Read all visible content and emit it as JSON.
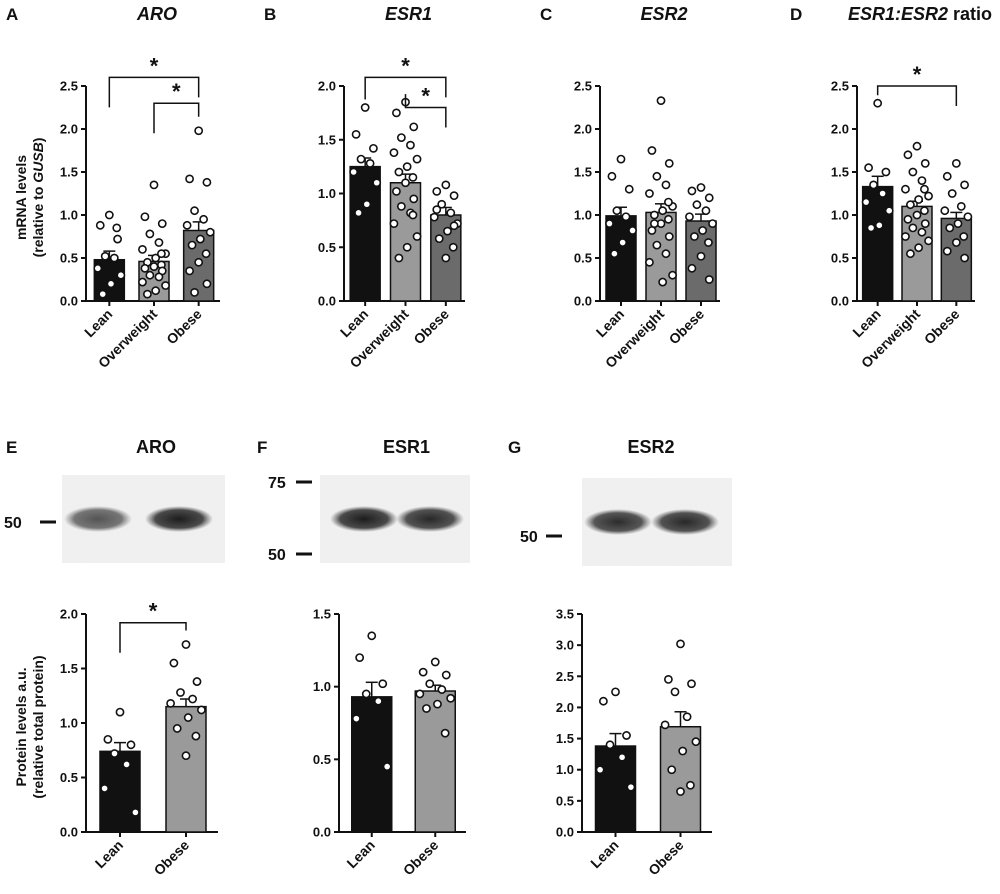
{
  "chart_data": [
    {
      "panel": "A",
      "type": "bar",
      "title": "ARO",
      "title_italic": true,
      "title_parts": [
        {
          "text": "ARO",
          "italic": true
        }
      ],
      "ylabel_lines": [
        [
          {
            "text": "mRNA levels",
            "italic": false
          }
        ],
        [
          {
            "text": "(relative to ",
            "italic": false
          },
          {
            "text": "GUSB",
            "italic": true
          },
          {
            "text": ")",
            "italic": false
          }
        ]
      ],
      "ylim": [
        0,
        2.5
      ],
      "yticks": [
        "0.0",
        "0.5",
        "1.0",
        "1.5",
        "2.0",
        "2.5"
      ],
      "categories": [
        "Lean",
        "Overweight",
        "Obese"
      ],
      "bar_colors": [
        "#111111",
        "#9a9a9a",
        "#6b6b6b"
      ],
      "values": [
        0.48,
        0.46,
        0.82
      ],
      "sem": [
        0.1,
        0.07,
        0.1
      ],
      "points": [
        [
          1.0,
          0.88,
          0.72,
          0.52,
          0.5,
          0.38,
          0.3,
          0.2,
          0.08,
          0.85
        ],
        [
          1.35,
          0.98,
          0.9,
          0.78,
          0.68,
          0.6,
          0.55,
          0.5,
          0.45,
          0.42,
          0.4,
          0.38,
          0.35,
          0.3,
          0.28,
          0.22,
          0.18,
          0.12,
          0.08,
          0.55
        ],
        [
          1.98,
          1.42,
          1.38,
          1.05,
          0.95,
          0.88,
          0.8,
          0.72,
          0.65,
          0.55,
          0.45,
          0.35,
          0.2,
          0.1
        ]
      ],
      "significance": [
        {
          "from": 0,
          "to": 2,
          "label": "*",
          "y": 2.6
        },
        {
          "from": 1,
          "to": 2,
          "label": "*",
          "y": 2.3
        }
      ]
    },
    {
      "panel": "B",
      "type": "bar",
      "title": "ESR1",
      "title_italic": true,
      "title_parts": [
        {
          "text": "ESR1",
          "italic": true
        }
      ],
      "ylim": [
        0,
        2.0
      ],
      "yticks": [
        "0.0",
        "0.5",
        "1.0",
        "1.5",
        "2.0"
      ],
      "categories": [
        "Lean",
        "Overweight",
        "Obese"
      ],
      "bar_colors": [
        "#111111",
        "#9a9a9a",
        "#6b6b6b"
      ],
      "values": [
        1.25,
        1.1,
        0.8
      ],
      "sem": [
        0.08,
        0.08,
        0.07
      ],
      "points": [
        [
          1.8,
          1.55,
          1.42,
          1.32,
          1.28,
          1.2,
          1.1,
          0.9,
          0.82
        ],
        [
          1.85,
          1.75,
          1.62,
          1.52,
          1.45,
          1.38,
          1.32,
          1.25,
          1.2,
          1.15,
          1.1,
          1.02,
          0.95,
          0.88,
          0.82,
          0.72,
          0.6,
          0.5,
          0.4,
          0.8
        ],
        [
          1.08,
          1.02,
          0.98,
          0.9,
          0.82,
          0.78,
          0.72,
          0.65,
          0.58,
          0.5,
          0.4,
          0.85,
          0.7
        ]
      ],
      "significance": [
        {
          "from": 0,
          "to": 2,
          "label": "*",
          "y": 2.08
        },
        {
          "from": 1,
          "to": 2,
          "label": "*",
          "y": 1.8
        }
      ]
    },
    {
      "panel": "C",
      "type": "bar",
      "title": "ESR2",
      "title_italic": true,
      "title_parts": [
        {
          "text": "ESR2",
          "italic": true
        }
      ],
      "ylim": [
        0,
        2.5
      ],
      "yticks": [
        "0.0",
        "0.5",
        "1.0",
        "1.5",
        "2.0",
        "2.5"
      ],
      "categories": [
        "Lean",
        "Overweight",
        "Obese"
      ],
      "bar_colors": [
        "#111111",
        "#9a9a9a",
        "#6b6b6b"
      ],
      "values": [
        0.99,
        1.03,
        0.93
      ],
      "sem": [
        0.1,
        0.1,
        0.08
      ],
      "points": [
        [
          1.65,
          1.45,
          1.3,
          1.05,
          0.98,
          0.9,
          0.82,
          0.68,
          0.55
        ],
        [
          2.33,
          1.75,
          1.6,
          1.45,
          1.35,
          1.25,
          1.1,
          1.05,
          1.0,
          0.95,
          0.9,
          0.82,
          0.75,
          0.65,
          0.55,
          0.45,
          0.3,
          0.22,
          0.9,
          1.15
        ],
        [
          1.32,
          1.28,
          1.2,
          1.12,
          1.05,
          0.98,
          0.9,
          0.82,
          0.75,
          0.68,
          0.52,
          0.38,
          0.25
        ]
      ],
      "significance": []
    },
    {
      "panel": "D",
      "type": "bar",
      "title": "ESR1:ESR2 ratio",
      "title_italic": false,
      "title_parts": [
        {
          "text": "ESR1:ESR2",
          "italic": true
        },
        {
          "text": " ratio",
          "italic": false
        }
      ],
      "ylim": [
        0,
        2.5
      ],
      "yticks": [
        "0.0",
        "0.5",
        "1.0",
        "1.5",
        "2.0",
        "2.5"
      ],
      "categories": [
        "Lean",
        "Overweight",
        "Obese"
      ],
      "bar_colors": [
        "#111111",
        "#9a9a9a",
        "#6b6b6b"
      ],
      "values": [
        1.33,
        1.1,
        0.96
      ],
      "sem": [
        0.12,
        0.06,
        0.07
      ],
      "points": [
        [
          2.3,
          1.55,
          1.5,
          1.35,
          1.25,
          1.15,
          1.05,
          0.88,
          0.85
        ],
        [
          1.8,
          1.7,
          1.6,
          1.5,
          1.4,
          1.3,
          1.22,
          1.18,
          1.12,
          1.05,
          1.0,
          0.95,
          0.9,
          0.85,
          0.8,
          0.75,
          0.7,
          0.62,
          0.55,
          1.3
        ],
        [
          1.6,
          1.45,
          1.35,
          1.25,
          1.1,
          1.05,
          0.98,
          0.9,
          0.85,
          0.75,
          0.68,
          0.58,
          0.5
        ]
      ],
      "significance": [
        {
          "from": 0,
          "to": 2,
          "label": "*",
          "y": 2.5
        }
      ]
    },
    {
      "panel": "E",
      "type": "bar",
      "title": "ARO",
      "title_italic": false,
      "title_parts": [
        {
          "text": "ARO",
          "italic": false
        }
      ],
      "ylabel_lines": [
        [
          {
            "text": "Protein levels a.u.",
            "italic": false
          }
        ],
        [
          {
            "text": "(relative total protein)",
            "italic": false
          }
        ]
      ],
      "ylim": [
        0,
        2.0
      ],
      "yticks": [
        "0.0",
        "0.5",
        "1.0",
        "1.5",
        "2.0"
      ],
      "categories": [
        "Lean",
        "Obese"
      ],
      "bar_colors": [
        "#111111",
        "#9a9a9a"
      ],
      "values": [
        0.74,
        1.15
      ],
      "sem": [
        0.08,
        0.07
      ],
      "points": [
        [
          1.1,
          0.85,
          0.8,
          0.72,
          0.62,
          0.4,
          0.18
        ],
        [
          1.72,
          1.55,
          1.38,
          1.28,
          1.22,
          1.18,
          1.12,
          1.05,
          0.95,
          0.88,
          0.7
        ]
      ],
      "significance": [
        {
          "from": 0,
          "to": 1,
          "label": "*",
          "y": 1.92
        }
      ],
      "blot": {
        "markers": [
          {
            "label": "50"
          }
        ],
        "band_intensity": [
          0.7,
          0.95
        ]
      }
    },
    {
      "panel": "F",
      "type": "bar",
      "title": "ESR1",
      "title_italic": false,
      "title_parts": [
        {
          "text": "ESR1",
          "italic": false
        }
      ],
      "ylim": [
        0,
        1.5
      ],
      "yticks": [
        "0.0",
        "0.5",
        "1.0",
        "1.5"
      ],
      "categories": [
        "Lean",
        "Obese"
      ],
      "bar_colors": [
        "#111111",
        "#9a9a9a"
      ],
      "values": [
        0.93,
        0.97
      ],
      "sem": [
        0.1,
        0.04
      ],
      "points": [
        [
          1.35,
          1.2,
          1.02,
          0.95,
          0.9,
          0.78,
          0.45
        ],
        [
          1.17,
          1.1,
          1.08,
          1.02,
          0.98,
          0.95,
          0.92,
          0.88,
          0.85,
          0.68
        ]
      ],
      "significance": [],
      "blot": {
        "markers": [
          {
            "label": "75"
          },
          {
            "label": "50"
          }
        ],
        "band_intensity": [
          0.95,
          0.9
        ]
      }
    },
    {
      "panel": "G",
      "type": "bar",
      "title": "ESR2",
      "title_italic": false,
      "title_parts": [
        {
          "text": "ESR2",
          "italic": false
        }
      ],
      "ylim": [
        0,
        3.5
      ],
      "yticks": [
        "0.0",
        "0.5",
        "1.0",
        "1.5",
        "2.0",
        "2.5",
        "3.0",
        "3.5"
      ],
      "categories": [
        "Lean",
        "Obese"
      ],
      "bar_colors": [
        "#111111",
        "#9a9a9a"
      ],
      "values": [
        1.38,
        1.69
      ],
      "sem": [
        0.2,
        0.24
      ],
      "points": [
        [
          2.25,
          2.1,
          1.55,
          1.4,
          1.2,
          1.0,
          0.72
        ],
        [
          3.02,
          2.45,
          2.38,
          2.25,
          1.85,
          1.72,
          1.45,
          1.3,
          1.0,
          0.75,
          0.65
        ]
      ],
      "significance": [],
      "blot": {
        "markers": [
          {
            "label": "50"
          }
        ],
        "band_intensity": [
          0.88,
          0.9
        ]
      }
    }
  ]
}
